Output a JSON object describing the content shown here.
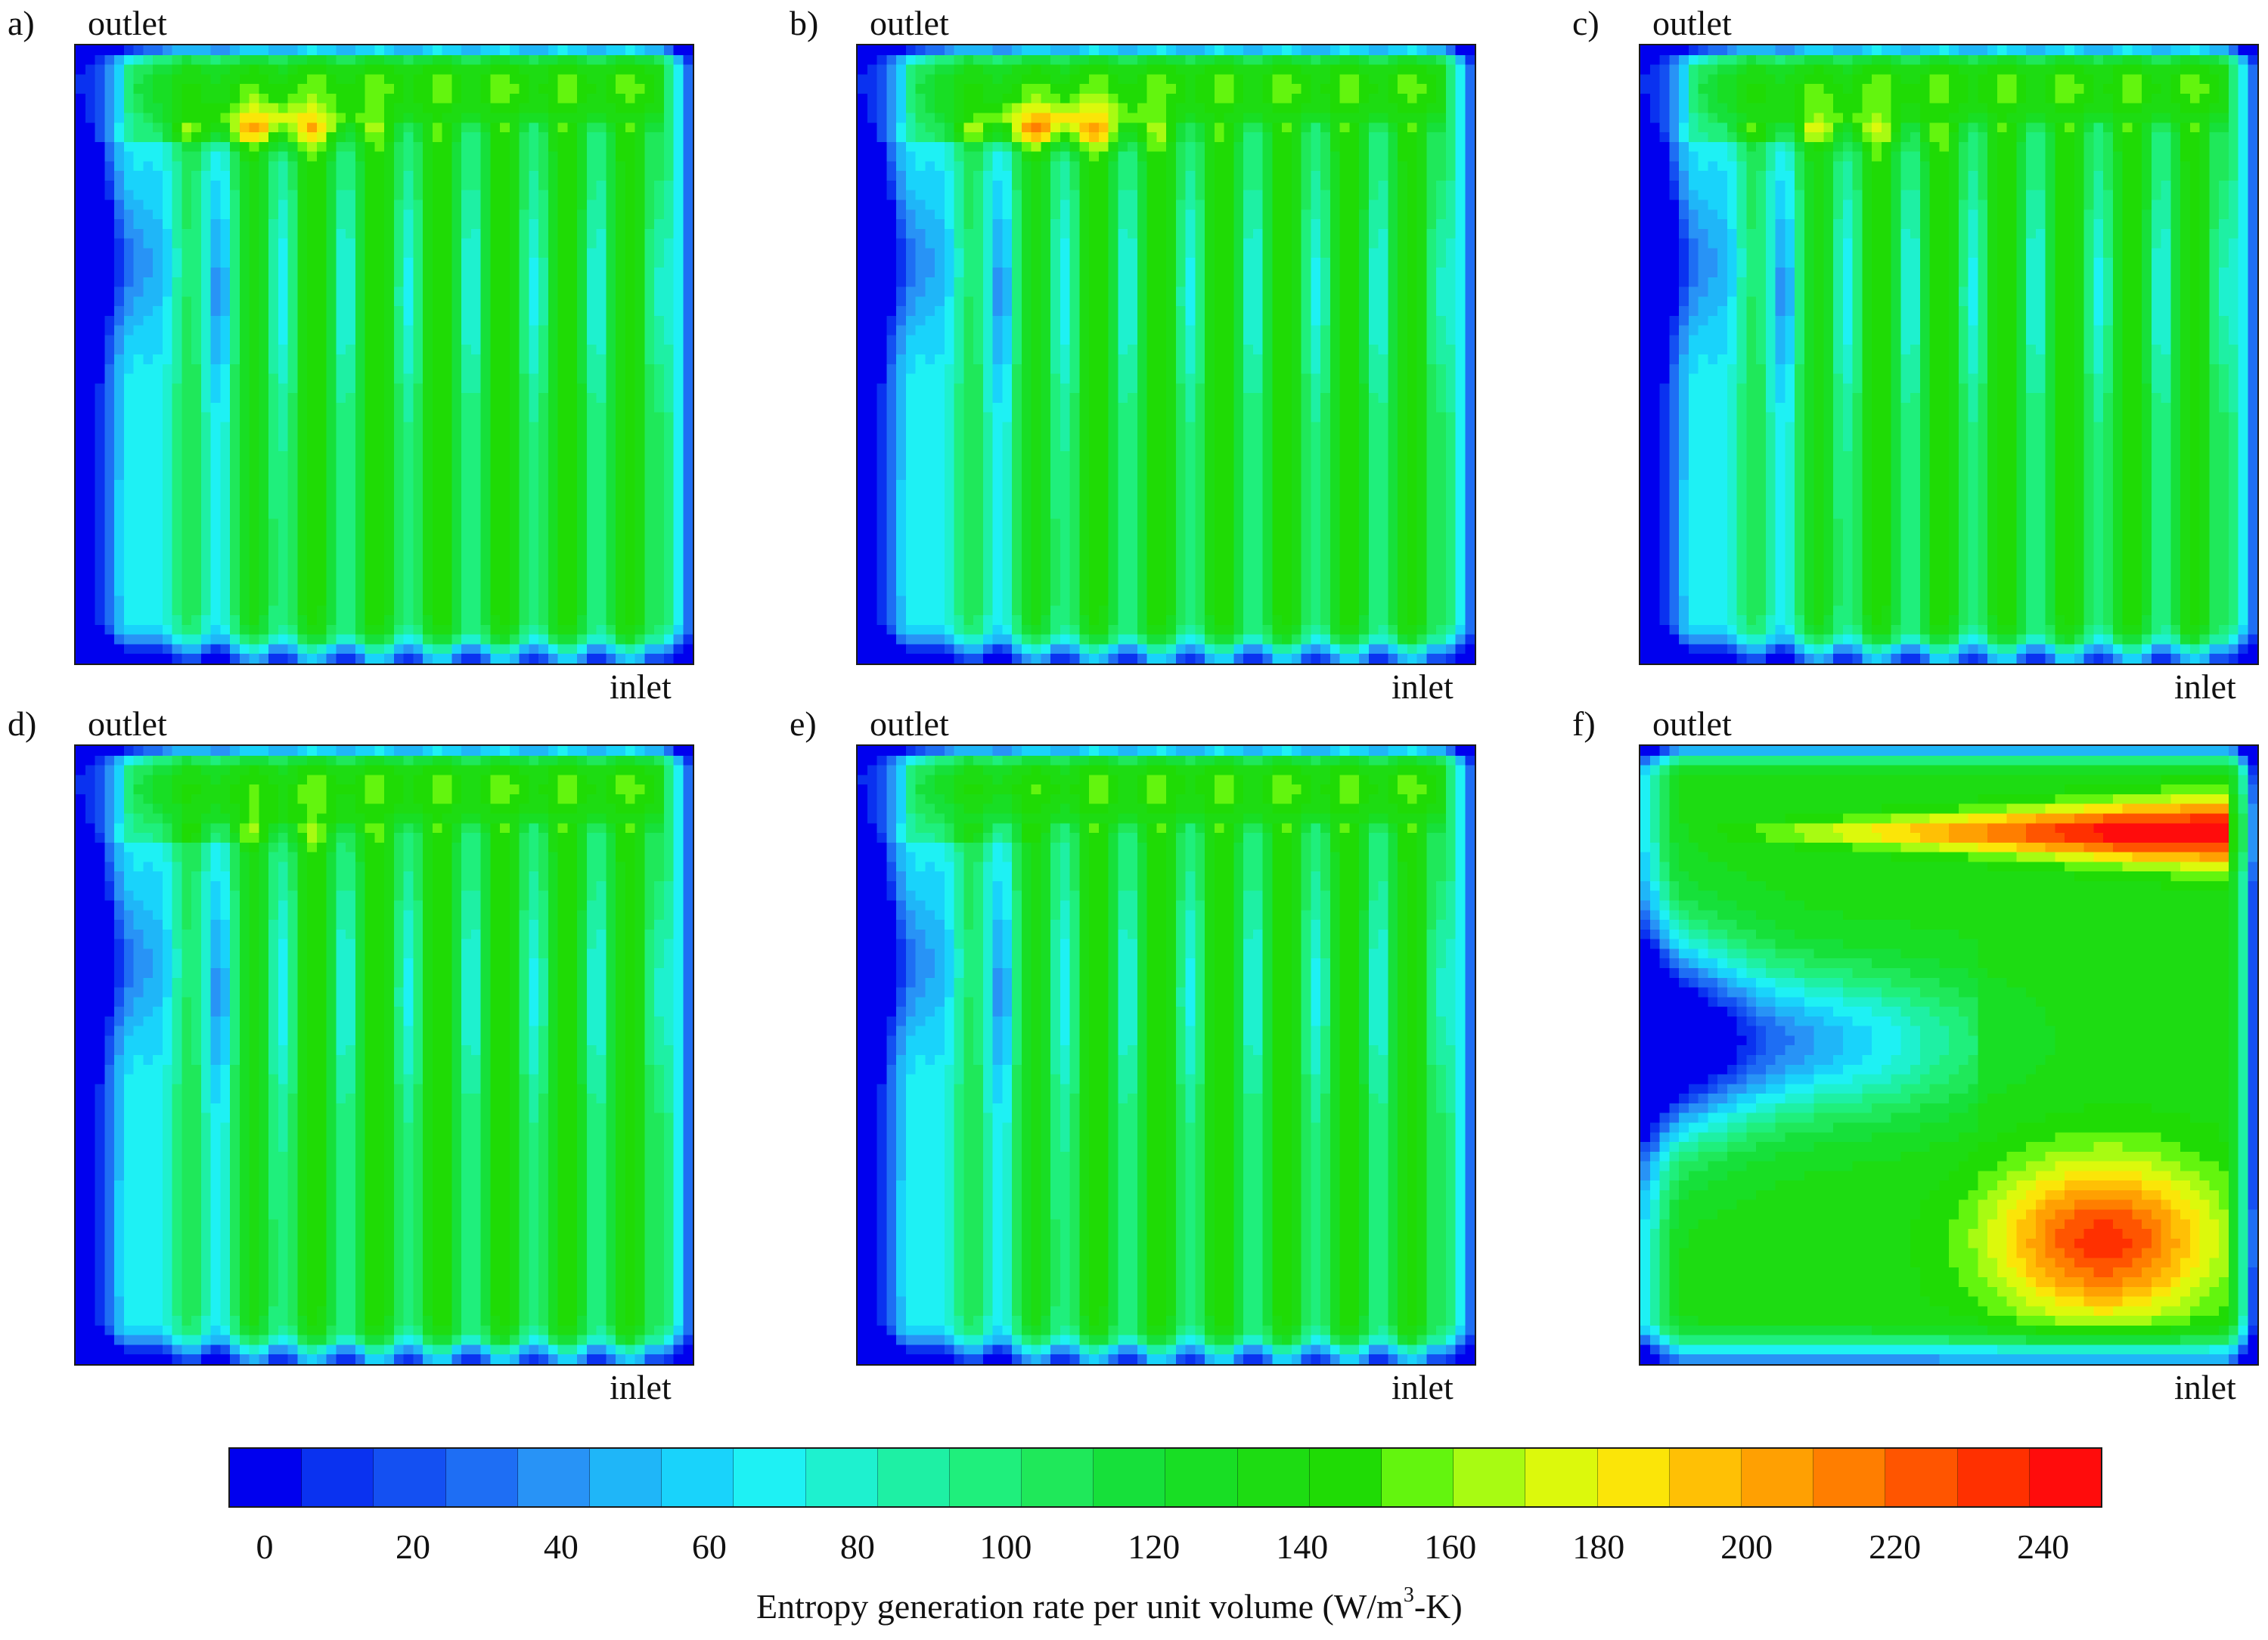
{
  "panels": [
    {
      "id": "a",
      "letter": "a)",
      "top_label": "outlet",
      "bottom_label": "inlet",
      "variant": "striped",
      "hot": 0.85
    },
    {
      "id": "b",
      "letter": "b)",
      "top_label": "outlet",
      "bottom_label": "inlet",
      "variant": "striped",
      "hot": 1.0
    },
    {
      "id": "c",
      "letter": "c)",
      "top_label": "outlet",
      "bottom_label": "inlet",
      "variant": "striped",
      "hot": 0.45
    },
    {
      "id": "d",
      "letter": "d)",
      "top_label": "outlet",
      "bottom_label": "inlet",
      "variant": "striped",
      "hot": 0.25
    },
    {
      "id": "e",
      "letter": "e)",
      "top_label": "outlet",
      "bottom_label": "inlet",
      "variant": "striped",
      "hot": 0.0
    },
    {
      "id": "f",
      "letter": "f)",
      "top_label": "outlet",
      "bottom_label": "inlet",
      "variant": "lobes",
      "hot": 0.0
    }
  ],
  "colorbar": {
    "title_prefix": "Entropy generation rate per unit volume  (W/m",
    "title_sup": "3",
    "title_suffix": "-K)",
    "ticks": [
      "0",
      "20",
      "40",
      "60",
      "80",
      "100",
      "120",
      "140",
      "160",
      "180",
      "200",
      "220",
      "240"
    ],
    "min": 0,
    "max": 255,
    "colors": [
      "#0000ee",
      "#0a32f0",
      "#1450f2",
      "#1e6ef4",
      "#2893f6",
      "#1fb6f8",
      "#19d3fb",
      "#1ef1f4",
      "#1ef1cf",
      "#1ef0a4",
      "#1fef7c",
      "#1fe85a",
      "#16e03a",
      "#18de24",
      "#1ddc12",
      "#1fdb05",
      "#63f50e",
      "#a8fb12",
      "#dcf90c",
      "#fbe508",
      "#ffc005",
      "#ffa002",
      "#ff7e00",
      "#ff5500",
      "#ff3000",
      "#ff0c0c"
    ]
  }
}
